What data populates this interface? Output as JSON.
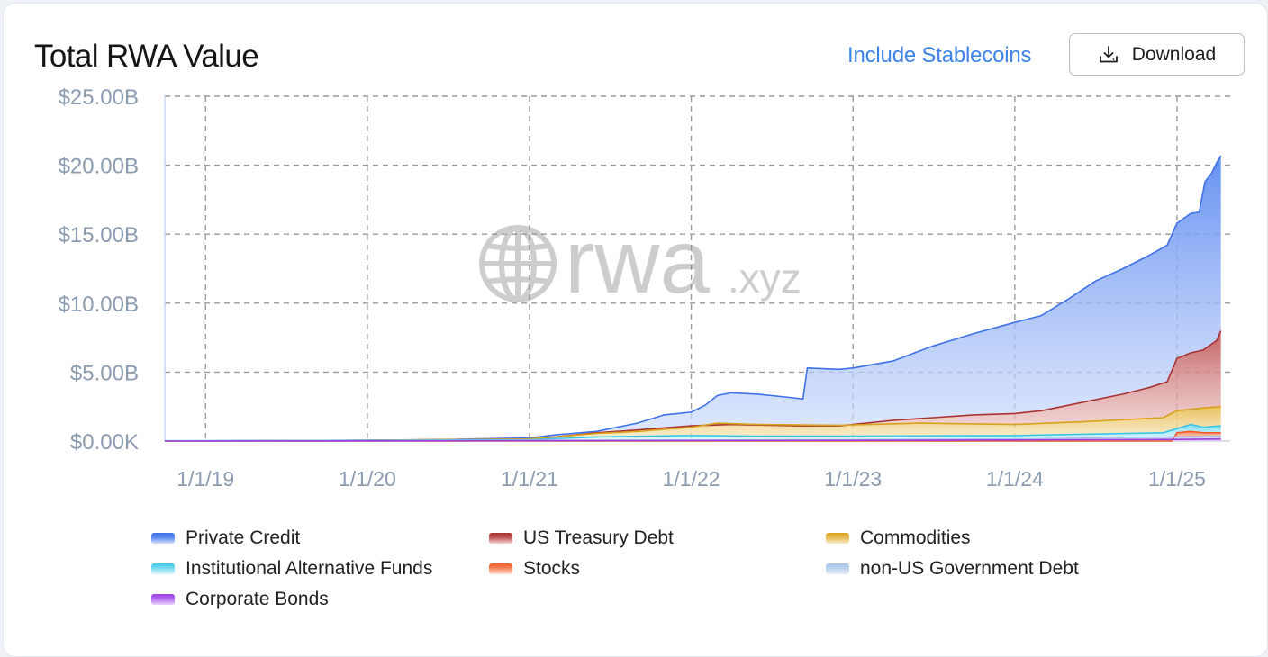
{
  "header": {
    "title": "Total RWA Value",
    "stablecoins_link": "Include Stablecoins",
    "download_label": "Download"
  },
  "icons": {
    "download": "download-icon",
    "watermark": "globe-icon"
  },
  "watermark": {
    "main": "rwa",
    "suffix": ".xyz"
  },
  "chart_data": {
    "type": "area",
    "stacked": true,
    "title": "Total RWA Value",
    "xlabel": "",
    "ylabel": "",
    "ylim": [
      0,
      25
    ],
    "y_unit": "billion USD",
    "yticks": [
      {
        "value": 0,
        "label": "$0.00K"
      },
      {
        "value": 5,
        "label": "$5.00B"
      },
      {
        "value": 10,
        "label": "$10.00B"
      },
      {
        "value": 15,
        "label": "$15.00B"
      },
      {
        "value": 20,
        "label": "$20.00B"
      },
      {
        "value": 25,
        "label": "$25.00B"
      }
    ],
    "xlim": [
      "2018-10-01",
      "2025-05-01"
    ],
    "xticks": [
      {
        "date": "2019-01-01",
        "label": "1/1/19"
      },
      {
        "date": "2020-01-01",
        "label": "1/1/20"
      },
      {
        "date": "2021-01-01",
        "label": "1/1/21"
      },
      {
        "date": "2022-01-01",
        "label": "1/1/22"
      },
      {
        "date": "2023-01-01",
        "label": "1/1/23"
      },
      {
        "date": "2024-01-01",
        "label": "1/1/24"
      },
      {
        "date": "2025-01-01",
        "label": "1/1/25"
      }
    ],
    "grid": true,
    "legend_position": "bottom",
    "note": "values are cumulative stack totals (each series' upper edge), in billions USD",
    "series": [
      {
        "name": "Private Credit",
        "color": "#3f72e8",
        "fill_top": "#5f8cf0",
        "fill_bottom": "#d3e0fb",
        "points": [
          [
            "2018-10-01",
            0.0
          ],
          [
            "2019-06-01",
            0.03
          ],
          [
            "2020-01-01",
            0.06
          ],
          [
            "2020-06-01",
            0.1
          ],
          [
            "2021-01-01",
            0.22
          ],
          [
            "2021-03-01",
            0.45
          ],
          [
            "2021-06-01",
            0.7
          ],
          [
            "2021-09-01",
            1.3
          ],
          [
            "2021-11-01",
            1.9
          ],
          [
            "2022-01-01",
            2.1
          ],
          [
            "2022-02-01",
            2.6
          ],
          [
            "2022-03-01",
            3.3
          ],
          [
            "2022-04-01",
            3.5
          ],
          [
            "2022-06-01",
            3.4
          ],
          [
            "2022-08-01",
            3.2
          ],
          [
            "2022-09-10",
            3.05
          ],
          [
            "2022-09-20",
            5.3
          ],
          [
            "2022-12-01",
            5.2
          ],
          [
            "2023-01-01",
            5.3
          ],
          [
            "2023-04-01",
            5.8
          ],
          [
            "2023-07-01",
            6.9
          ],
          [
            "2023-10-01",
            7.8
          ],
          [
            "2024-01-01",
            8.6
          ],
          [
            "2024-03-01",
            9.1
          ],
          [
            "2024-05-01",
            10.3
          ],
          [
            "2024-07-01",
            11.6
          ],
          [
            "2024-09-01",
            12.5
          ],
          [
            "2024-11-01",
            13.5
          ],
          [
            "2024-12-10",
            14.2
          ],
          [
            "2025-01-01",
            15.8
          ],
          [
            "2025-02-01",
            16.5
          ],
          [
            "2025-02-20",
            16.6
          ],
          [
            "2025-03-05",
            18.8
          ],
          [
            "2025-03-20",
            19.4
          ],
          [
            "2025-04-01",
            20.2
          ],
          [
            "2025-04-10",
            20.7
          ]
        ]
      },
      {
        "name": "US Treasury Debt",
        "color": "#a93232",
        "fill_top": "#c05a5a",
        "fill_bottom": "#f3d3d3",
        "points": [
          [
            "2018-10-01",
            0.0
          ],
          [
            "2020-01-01",
            0.05
          ],
          [
            "2021-01-01",
            0.15
          ],
          [
            "2021-03-01",
            0.3
          ],
          [
            "2021-06-01",
            0.6
          ],
          [
            "2021-09-01",
            0.8
          ],
          [
            "2022-01-01",
            1.1
          ],
          [
            "2022-04-01",
            1.2
          ],
          [
            "2022-09-01",
            1.1
          ],
          [
            "2022-12-01",
            1.1
          ],
          [
            "2023-01-01",
            1.2
          ],
          [
            "2023-04-01",
            1.5
          ],
          [
            "2023-07-01",
            1.7
          ],
          [
            "2023-10-01",
            1.9
          ],
          [
            "2024-01-01",
            2.0
          ],
          [
            "2024-03-01",
            2.2
          ],
          [
            "2024-05-01",
            2.6
          ],
          [
            "2024-07-01",
            3.0
          ],
          [
            "2024-09-01",
            3.4
          ],
          [
            "2024-11-01",
            3.9
          ],
          [
            "2024-12-10",
            4.3
          ],
          [
            "2025-01-01",
            6.0
          ],
          [
            "2025-02-01",
            6.4
          ],
          [
            "2025-03-01",
            6.6
          ],
          [
            "2025-04-01",
            7.3
          ],
          [
            "2025-04-10",
            8.0
          ]
        ]
      },
      {
        "name": "Commodities",
        "color": "#d9a21c",
        "fill_top": "#e8bd55",
        "fill_bottom": "#f8ebc6",
        "points": [
          [
            "2018-10-01",
            0.0
          ],
          [
            "2020-01-01",
            0.05
          ],
          [
            "2021-01-01",
            0.15
          ],
          [
            "2021-06-01",
            0.55
          ],
          [
            "2021-09-01",
            0.7
          ],
          [
            "2022-01-01",
            1.0
          ],
          [
            "2022-03-01",
            1.3
          ],
          [
            "2022-06-01",
            1.2
          ],
          [
            "2022-12-01",
            1.15
          ],
          [
            "2023-06-01",
            1.3
          ],
          [
            "2024-01-01",
            1.2
          ],
          [
            "2024-06-01",
            1.4
          ],
          [
            "2024-12-01",
            1.7
          ],
          [
            "2025-01-01",
            2.2
          ],
          [
            "2025-03-01",
            2.4
          ],
          [
            "2025-04-10",
            2.5
          ]
        ]
      },
      {
        "name": "Institutional Alternative Funds",
        "color": "#38c6e6",
        "fill_top": "#7cdcf0",
        "fill_bottom": "#dff6fc",
        "points": [
          [
            "2018-10-01",
            0.02
          ],
          [
            "2020-01-01",
            0.05
          ],
          [
            "2021-01-01",
            0.1
          ],
          [
            "2021-06-01",
            0.3
          ],
          [
            "2022-01-01",
            0.4
          ],
          [
            "2022-06-01",
            0.35
          ],
          [
            "2023-01-01",
            0.35
          ],
          [
            "2024-01-01",
            0.4
          ],
          [
            "2024-12-01",
            0.6
          ],
          [
            "2025-01-01",
            0.9
          ],
          [
            "2025-02-01",
            1.2
          ],
          [
            "2025-03-01",
            1.0
          ],
          [
            "2025-04-10",
            1.1
          ]
        ]
      },
      {
        "name": "Stocks",
        "color": "#ef5a28",
        "fill_top": "#f48457",
        "fill_bottom": "#fde0d3",
        "points": [
          [
            "2018-10-01",
            0.0
          ],
          [
            "2024-12-20",
            0.0
          ],
          [
            "2025-01-01",
            0.6
          ],
          [
            "2025-02-01",
            0.7
          ],
          [
            "2025-03-01",
            0.6
          ],
          [
            "2025-04-10",
            0.6
          ]
        ]
      },
      {
        "name": "non-US Government Debt",
        "color": "#a9c4e8",
        "fill_top": "#bcd2ee",
        "fill_bottom": "#e6eef9",
        "points": [
          [
            "2018-10-01",
            0.0
          ],
          [
            "2023-01-01",
            0.1
          ],
          [
            "2024-01-01",
            0.15
          ],
          [
            "2025-01-01",
            0.3
          ],
          [
            "2025-04-10",
            0.35
          ]
        ]
      },
      {
        "name": "Corporate Bonds",
        "color": "#9a3fe0",
        "fill_top": "#b46ff0",
        "fill_bottom": "#ead5fb",
        "points": [
          [
            "2018-10-01",
            0.0
          ],
          [
            "2023-01-01",
            0.05
          ],
          [
            "2024-01-01",
            0.08
          ],
          [
            "2025-01-01",
            0.12
          ],
          [
            "2025-04-10",
            0.15
          ]
        ]
      }
    ]
  }
}
